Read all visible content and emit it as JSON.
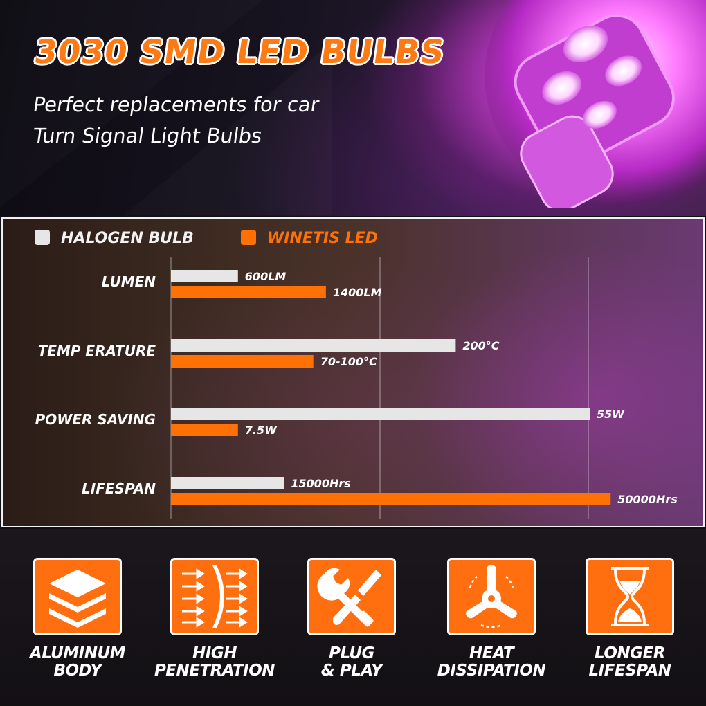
{
  "hero": {
    "title": "3030 SMD LED BULBS",
    "subtitle_line1": "Perfect replacements for car",
    "subtitle_line2": "Turn Signal Light Bulbs",
    "accent_color": "#ff7a12",
    "bulb_color": "#e040f0"
  },
  "chart_data": {
    "type": "bar",
    "orientation": "horizontal",
    "title": "",
    "categories": [
      "LUMEN",
      "TEMP ERATURE",
      "POWER SAVING",
      "LIFESPAN"
    ],
    "series": [
      {
        "name": "HALOGEN BULB",
        "color": "#e6e6e6",
        "values": [
          600,
          200,
          55,
          15000
        ],
        "labels": [
          "600LM",
          "200°C",
          "55W",
          "15000Hrs"
        ],
        "relative_length": [
          0.16,
          0.68,
          1.0,
          0.27
        ]
      },
      {
        "name": "WINETIS LED",
        "color": "#ff7005",
        "values": [
          1400,
          100,
          7.5,
          50000
        ],
        "labels": [
          "1400LM",
          "70-100°C",
          "7.5W",
          "50000Hrs"
        ],
        "relative_length": [
          0.37,
          0.34,
          0.16,
          1.05
        ]
      }
    ],
    "legend": "top-left",
    "grid": true,
    "xlabel": "",
    "ylabel": ""
  },
  "features": [
    {
      "icon": "layers-icon",
      "line1": "ALUMINUM",
      "line2": "BODY"
    },
    {
      "icon": "lens-beam-icon",
      "line1": "HIGH",
      "line2": "PENETRATION"
    },
    {
      "icon": "wrench-screwdriver-icon",
      "line1": "PLUG",
      "line2": "& PLAY"
    },
    {
      "icon": "fan-icon",
      "line1": "HEAT",
      "line2": "DISSIPATION"
    },
    {
      "icon": "hourglass-icon",
      "line1": "LONGER",
      "line2": "LIFESPAN"
    }
  ]
}
